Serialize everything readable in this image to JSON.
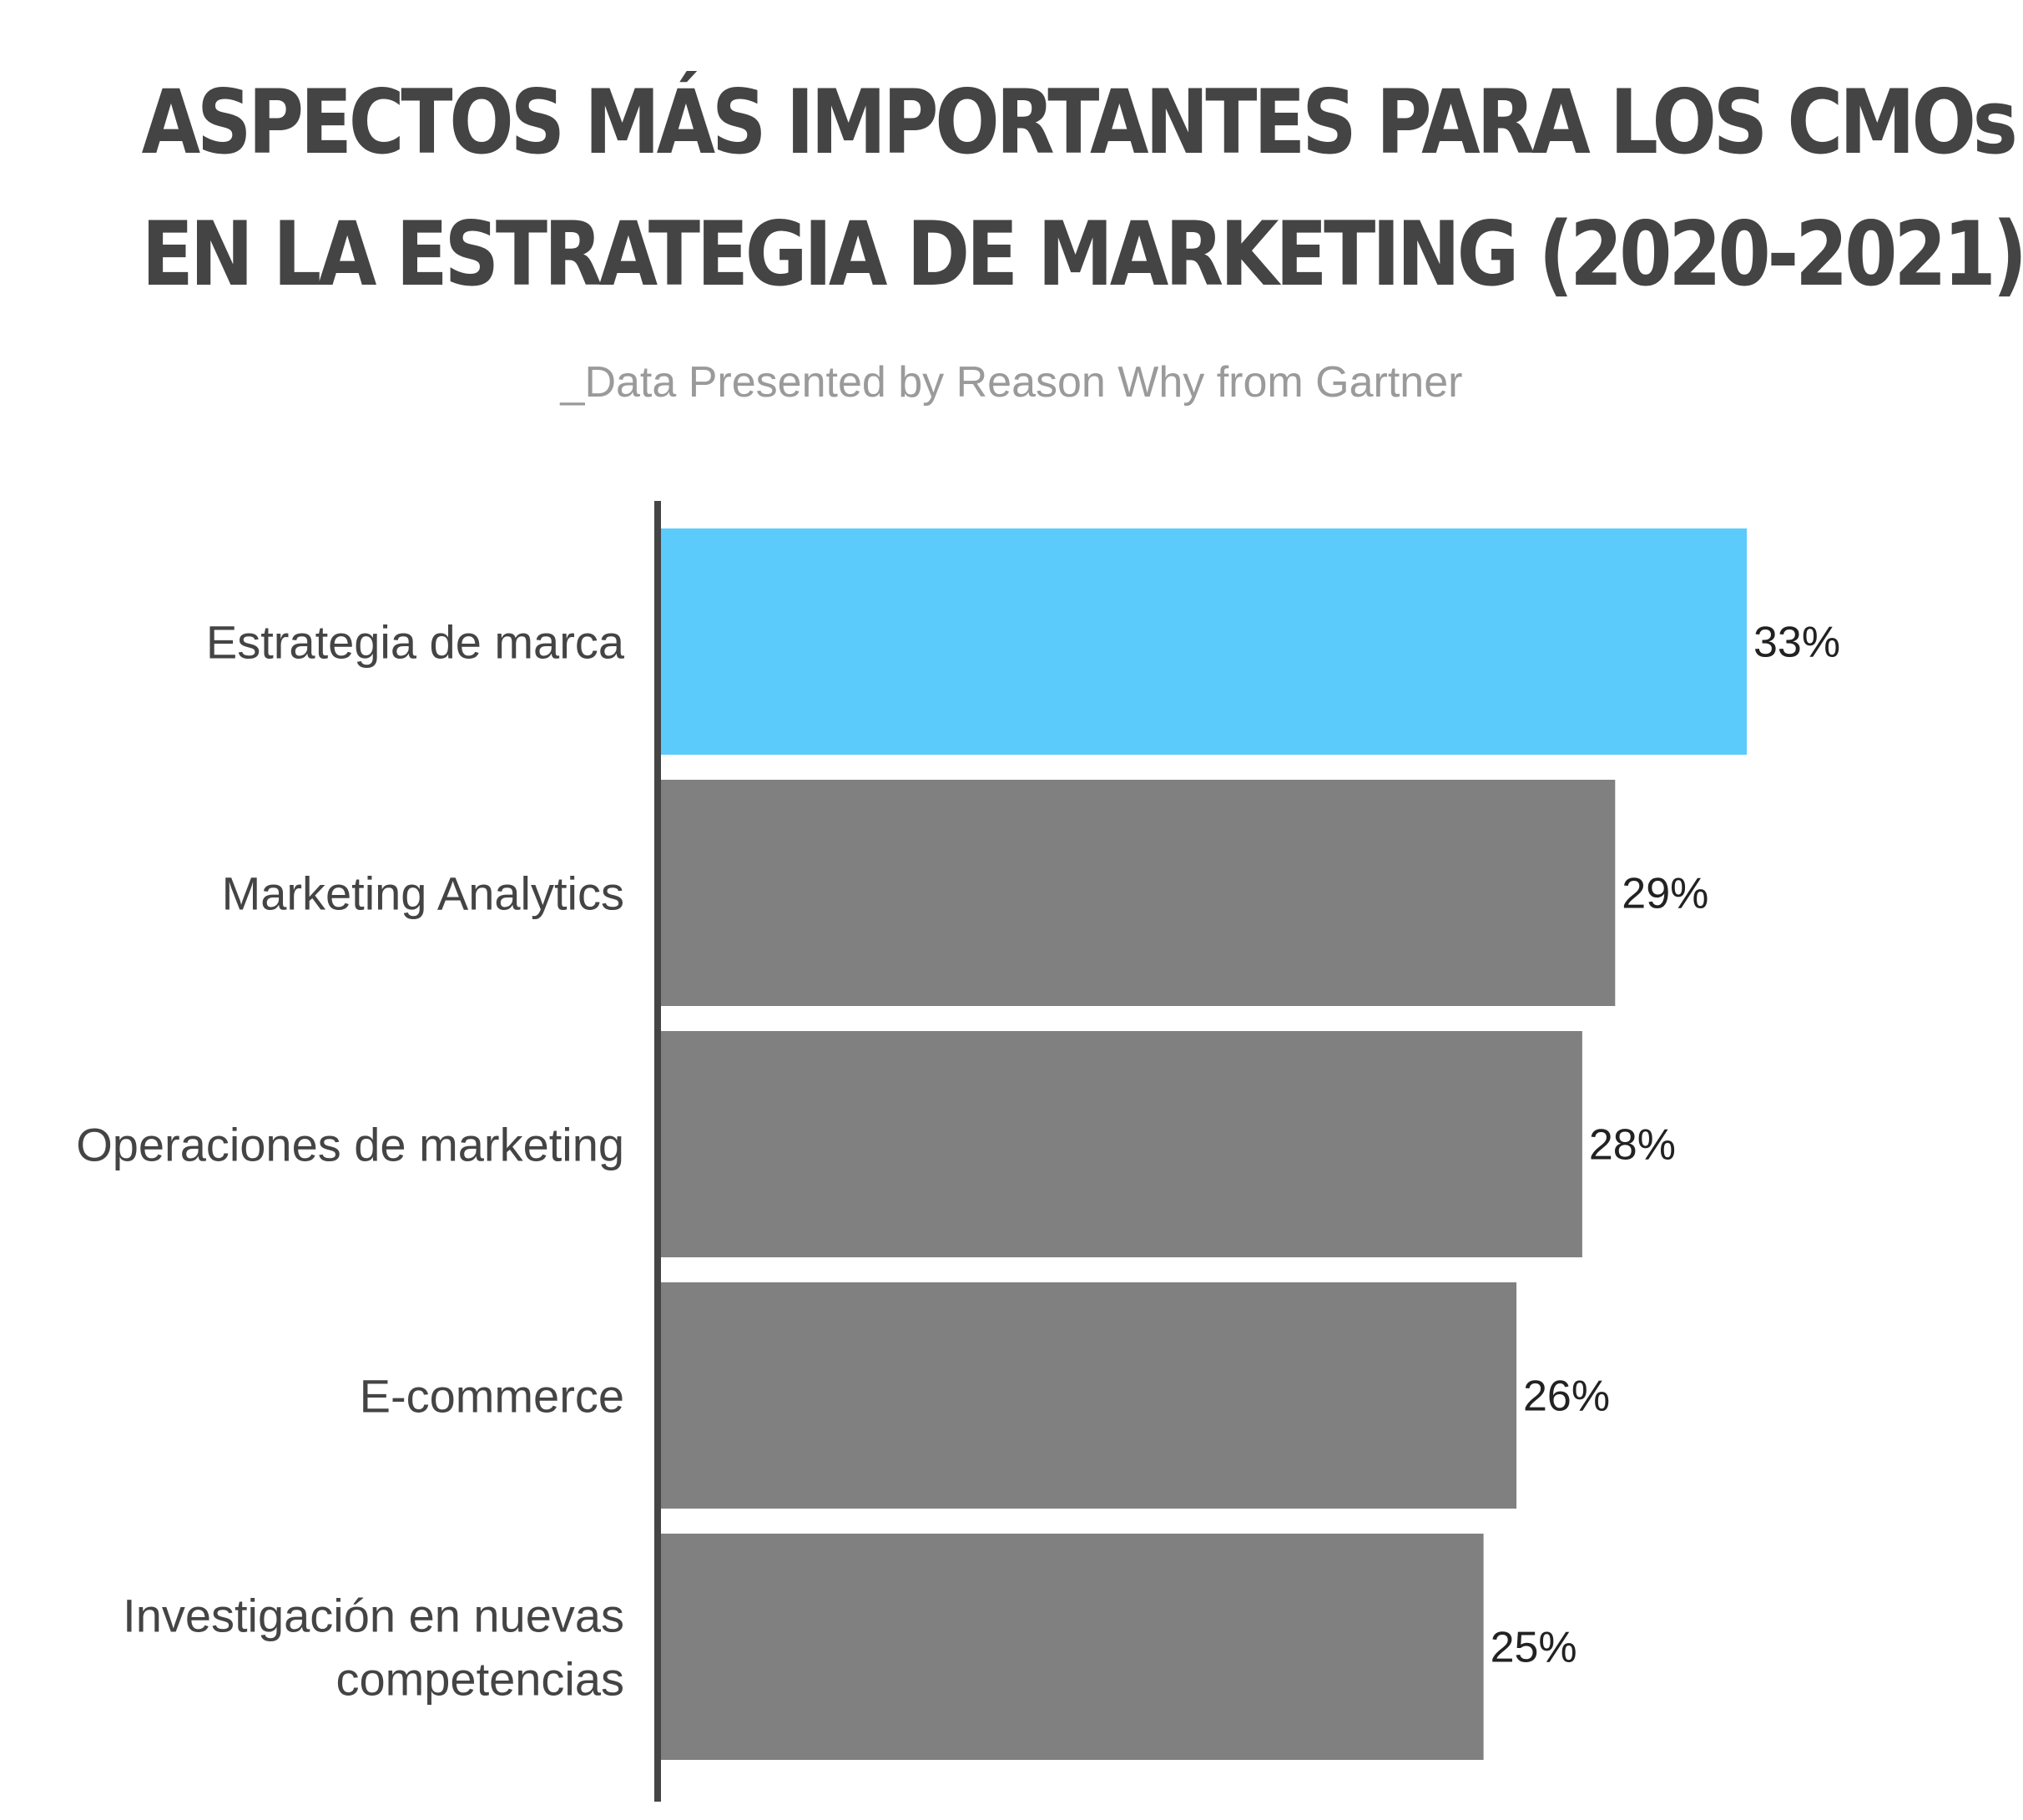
{
  "chart_data": {
    "type": "bar",
    "orientation": "horizontal",
    "title_lines": [
      "ASPECTOS MÁS IMPORTANTES PARA LOS CMOs",
      "EN LA ESTRATEGIA DE MARKETING (2020-2021)"
    ],
    "subtitle": "_Data Presented by Reason Why from Gartner",
    "categories": [
      [
        "Estrategia de marca"
      ],
      [
        "Marketing Analytics"
      ],
      [
        "Operaciones de marketing"
      ],
      [
        "E-commerce"
      ],
      [
        "Investigación en nuevas",
        "competencias"
      ]
    ],
    "values": [
      33,
      29,
      28,
      26,
      25
    ],
    "value_labels": [
      "33%",
      "29%",
      "28%",
      "26%",
      "25%"
    ],
    "colors": [
      "#5bcbfb",
      "#808080",
      "#808080",
      "#808080",
      "#808080"
    ],
    "axis_color": "#444444",
    "xlim": [
      0,
      33
    ],
    "grid": false,
    "legend": "none"
  }
}
